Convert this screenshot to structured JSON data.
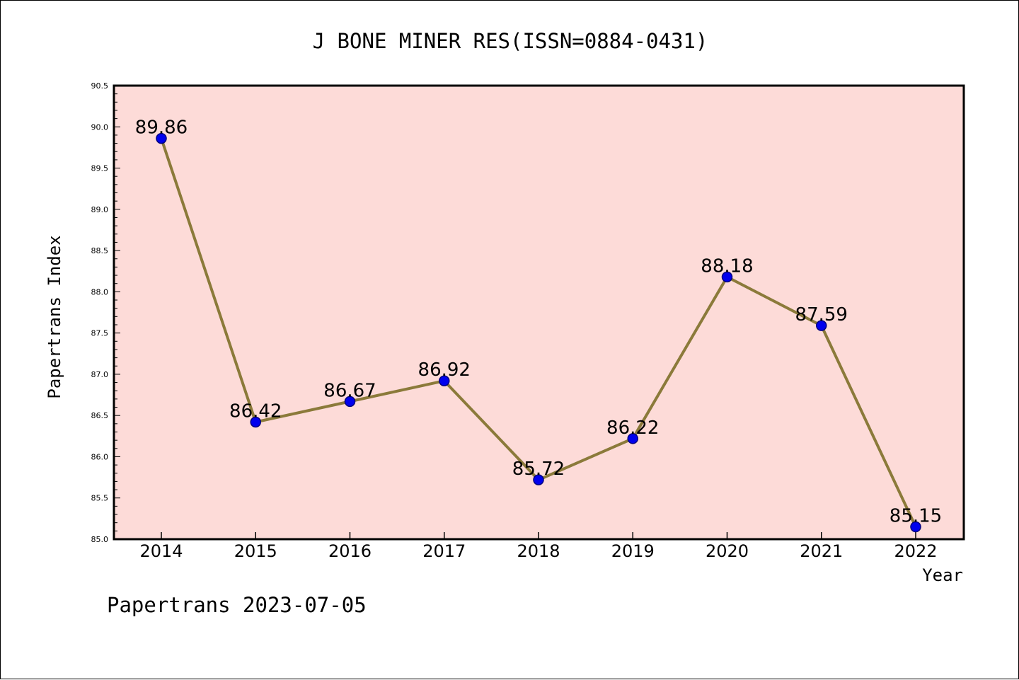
{
  "chart_data": {
    "type": "line",
    "title": "J BONE MINER RES(ISSN=0884-0431)",
    "xlabel": "Year",
    "ylabel": "Papertrans Index",
    "footer": "Papertrans 2023-07-05",
    "x": [
      "2014",
      "2015",
      "2016",
      "2017",
      "2018",
      "2019",
      "2020",
      "2021",
      "2022"
    ],
    "y": [
      89.86,
      86.42,
      86.67,
      86.92,
      85.72,
      86.22,
      88.18,
      87.59,
      85.15
    ],
    "data_labels": [
      "89.86",
      "86.42",
      "86.67",
      "86.92",
      "85.72",
      "86.22",
      "88.18",
      "87.59",
      "85.15"
    ],
    "ylim": [
      85.0,
      90.5
    ],
    "yticks": [
      "85.0",
      "85.5",
      "86.0",
      "86.5",
      "87.0",
      "87.5",
      "88.0",
      "88.5",
      "89.0",
      "89.5",
      "90.0",
      "90.5"
    ],
    "grid": false,
    "colors": {
      "plot_background": "#fddbd8",
      "line": "#8b7a3a",
      "marker": "#0000ee",
      "marker_edge": "#000080"
    }
  }
}
